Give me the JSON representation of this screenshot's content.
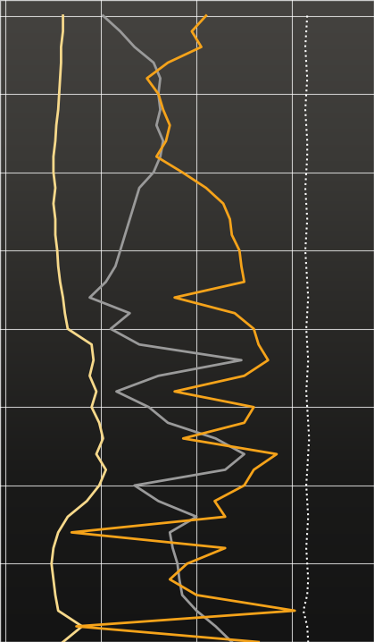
{
  "chart_data": {
    "type": "line",
    "tick_labels": false,
    "grid": true,
    "y": [
      0,
      0.2,
      0.4,
      0.6,
      0.8,
      1.0,
      1.2,
      1.4,
      1.6,
      1.8,
      2.0,
      2.2,
      2.4,
      2.6,
      2.8,
      3.0,
      3.2,
      3.4,
      3.6,
      3.8,
      4.0,
      4.2,
      4.4,
      4.6,
      4.8,
      5.0,
      5.2,
      5.4,
      5.6,
      5.8,
      6.0,
      6.2,
      6.4,
      6.6,
      6.8,
      7.0,
      7.2,
      7.4,
      7.6,
      7.8,
      8.0
    ],
    "xlim": [
      -0.06,
      3.86
    ],
    "xticks": [
      0,
      1,
      2,
      3
    ],
    "ylim": [
      8.0,
      -0.2
    ],
    "yticks": [
      0,
      1,
      2,
      3,
      4,
      5,
      6,
      7,
      8
    ],
    "series": [
      {
        "color": "#f7d98b",
        "line_style": "solid",
        "values": [
          0.6,
          0.6,
          0.58,
          0.58,
          0.57,
          0.56,
          0.55,
          0.53,
          0.52,
          0.5,
          0.5,
          0.52,
          0.5,
          0.52,
          0.52,
          0.54,
          0.55,
          0.57,
          0.6,
          0.62,
          0.65,
          0.9,
          0.92,
          0.88,
          0.95,
          0.9,
          0.98,
          1.02,
          0.95,
          1.05,
          0.98,
          0.85,
          0.65,
          0.55,
          0.5,
          0.48,
          0.5,
          0.52,
          0.55,
          0.8,
          0.6
        ]
      },
      {
        "color": "#9a9a9a",
        "line_style": "solid",
        "values": [
          1.02,
          1.2,
          1.35,
          1.55,
          1.62,
          1.6,
          1.62,
          1.58,
          1.65,
          1.62,
          1.55,
          1.4,
          1.35,
          1.3,
          1.25,
          1.2,
          1.15,
          1.05,
          0.88,
          1.3,
          1.1,
          1.4,
          2.47,
          1.6,
          1.16,
          1.5,
          1.7,
          2.2,
          2.5,
          2.3,
          1.35,
          1.6,
          2.0,
          1.72,
          1.75,
          1.8,
          1.82,
          1.85,
          2.0,
          2.2,
          2.37
        ]
      },
      {
        "color": "#f5a31a",
        "line_style": "solid",
        "values": [
          2.1,
          1.95,
          2.05,
          1.7,
          1.48,
          1.6,
          1.65,
          1.72,
          1.68,
          1.58,
          1.85,
          2.1,
          2.28,
          2.35,
          2.37,
          2.45,
          2.47,
          2.5,
          1.77,
          2.4,
          2.6,
          2.65,
          2.75,
          2.5,
          1.77,
          2.6,
          2.5,
          1.86,
          2.84,
          2.6,
          2.5,
          2.19,
          2.3,
          0.69,
          2.3,
          1.9,
          1.72,
          2.0,
          3.03,
          0.74,
          2.65
        ]
      },
      {
        "color": "#ffffff",
        "line_style": "dotted",
        "values": [
          3.16,
          3.15,
          3.14,
          3.15,
          3.16,
          3.15,
          3.14,
          3.15,
          3.16,
          3.16,
          3.15,
          3.14,
          3.15,
          3.16,
          3.15,
          3.14,
          3.15,
          3.16,
          3.17,
          3.16,
          3.15,
          3.16,
          3.17,
          3.16,
          3.15,
          3.16,
          3.17,
          3.18,
          3.17,
          3.16,
          3.15,
          3.16,
          3.17,
          3.16,
          3.15,
          3.16,
          3.17,
          3.16,
          3.12,
          3.16,
          3.17
        ]
      }
    ]
  }
}
